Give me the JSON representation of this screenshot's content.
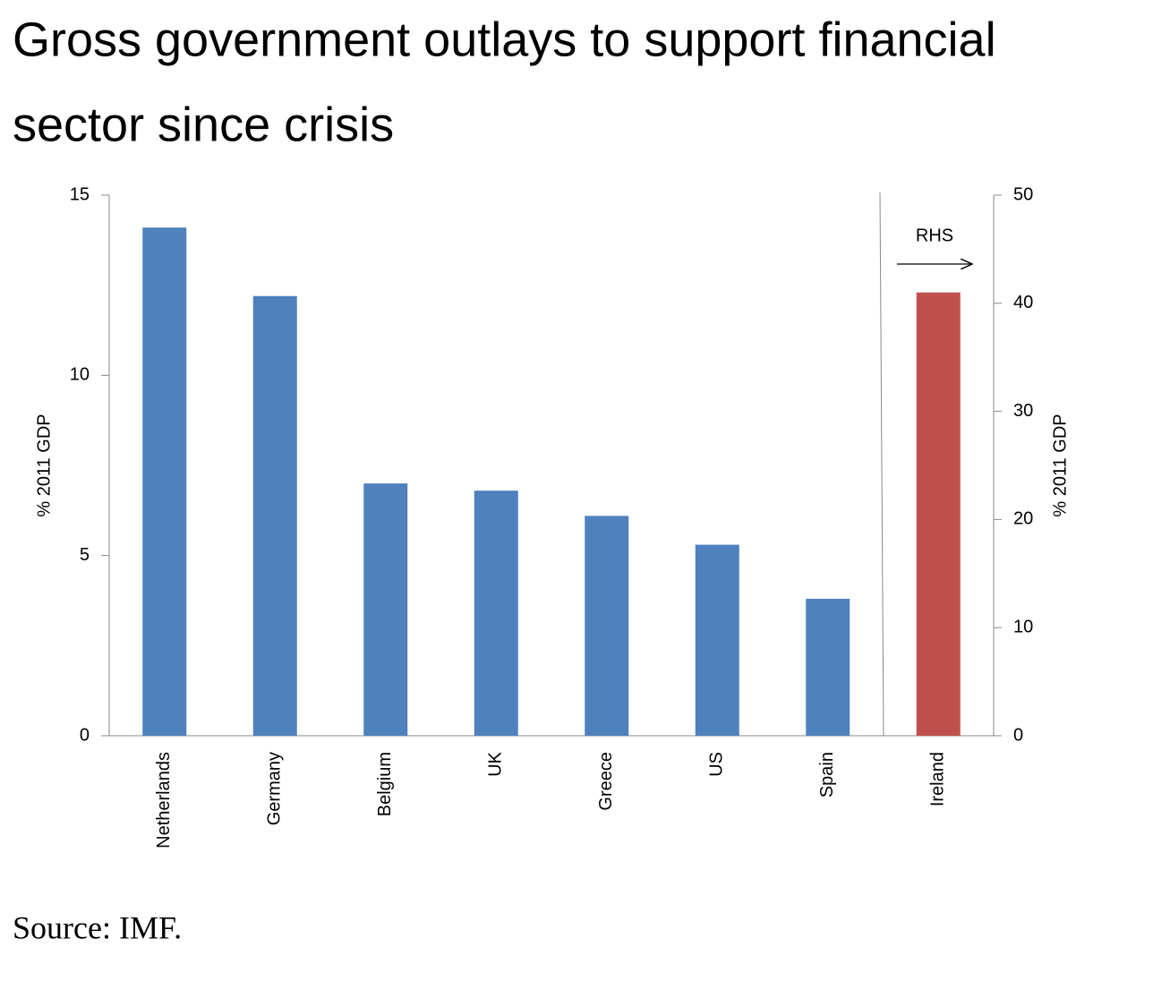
{
  "chart_data": {
    "type": "bar",
    "title": [
      "Gross government outlays to support financial",
      "sector since crisis"
    ],
    "categories": [
      "Netherlands",
      "Germany",
      "Belgium",
      "UK",
      "Greece",
      "US",
      "Spain",
      "Ireland"
    ],
    "series": [
      {
        "color": "#4f81bd",
        "values": [
          14.1,
          12.2,
          7.0,
          6.8,
          6.1,
          5.3,
          3.8,
          null
        ]
      },
      {
        "color": "#c0504d",
        "axis": "y2",
        "values": [
          null,
          null,
          null,
          null,
          null,
          null,
          null,
          41
        ]
      }
    ],
    "ylabel": "% 2011 GDP",
    "y2label": "% 2011 GDP",
    "ylim": [
      0,
      15
    ],
    "yticks": [
      0,
      5,
      10,
      15
    ],
    "y2lim": [
      0,
      50
    ],
    "y2ticks": [
      0,
      10,
      20,
      30,
      40,
      50
    ],
    "annotation": "RHS",
    "source": "Source: IMF.",
    "grid": false
  }
}
